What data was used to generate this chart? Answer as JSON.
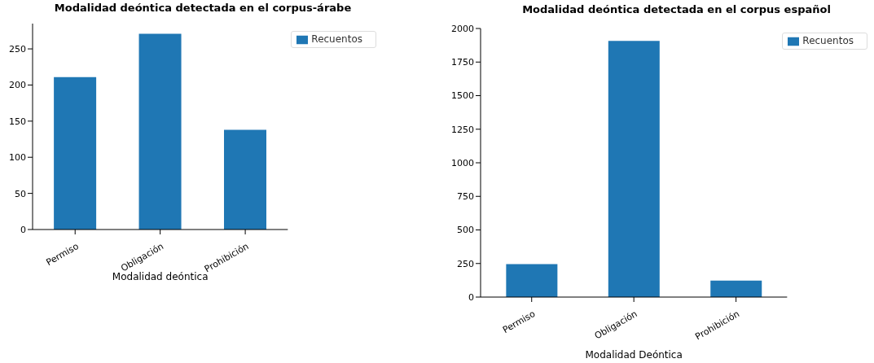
{
  "chart_data": [
    {
      "type": "bar",
      "title": "Modalidad deóntica detectada en el corpus-árabe",
      "xlabel": "Modalidad deóntica",
      "categories": [
        "Permiso",
        "Obligación",
        "Prohibición"
      ],
      "series": [
        {
          "name": "Recuentos",
          "color": "#1f77b4",
          "values": [
            211,
            271,
            138
          ]
        }
      ],
      "ylim": [
        0,
        285
      ],
      "yticks": [
        0,
        50,
        100,
        150,
        200,
        250
      ],
      "legend": "top right",
      "grid": false
    },
    {
      "type": "bar",
      "title": "Modalidad deóntica detectada en el corpus español",
      "xlabel": "Modalidad Deóntica",
      "categories": [
        "Permiso",
        "Obligación",
        "Prohibición"
      ],
      "series": [
        {
          "name": "Recuentos",
          "color": "#1f77b4",
          "values": [
            246,
            1908,
            123
          ]
        }
      ],
      "ylim": [
        0,
        2000
      ],
      "yticks": [
        0,
        250,
        500,
        750,
        1000,
        1250,
        1500,
        1750,
        2000
      ],
      "legend": "top right",
      "grid": false
    }
  ]
}
